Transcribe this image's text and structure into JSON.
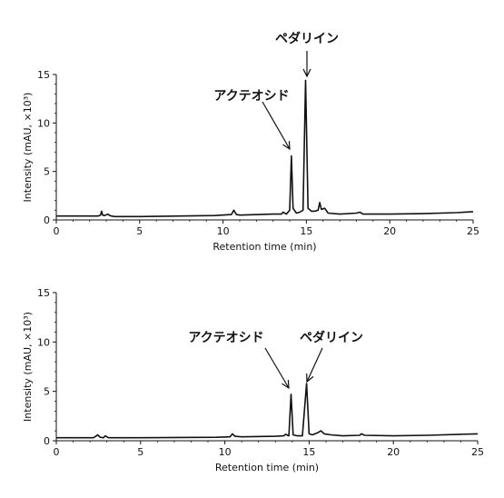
{
  "chart_data": [
    {
      "type": "line",
      "xlabel": "Retention time (min)",
      "ylabel": "Intensity (mAU, ×10³)",
      "xlim": [
        0,
        25
      ],
      "ylim": [
        0,
        15
      ],
      "xticks": [
        0,
        5,
        10,
        15,
        20,
        25
      ],
      "yticks": [
        0,
        5,
        10,
        15
      ],
      "grid": false,
      "series": [
        {
          "x": [
            0,
            2.5,
            2.65,
            2.72,
            2.78,
            2.9,
            3.1,
            3.2,
            3.3,
            3.5,
            5,
            9.5,
            10.5,
            10.65,
            10.8,
            11,
            13,
            13.5,
            13.6,
            13.8,
            14.0,
            14.1,
            14.2,
            14.4,
            14.6,
            14.8,
            14.95,
            15.1,
            15.3,
            15.5,
            15.7,
            15.8,
            15.9,
            16.1,
            16.3,
            17,
            18,
            18.2,
            18.4,
            19,
            20,
            22,
            24,
            25
          ],
          "y": [
            0.4,
            0.4,
            0.5,
            0.9,
            0.5,
            0.45,
            0.6,
            0.45,
            0.4,
            0.35,
            0.35,
            0.45,
            0.55,
            1.0,
            0.55,
            0.5,
            0.6,
            0.6,
            0.8,
            0.6,
            1.0,
            6.6,
            1.2,
            0.7,
            0.8,
            1.0,
            14.4,
            1.2,
            0.9,
            0.9,
            1.0,
            1.8,
            1.1,
            1.2,
            0.7,
            0.6,
            0.7,
            0.8,
            0.6,
            0.6,
            0.6,
            0.65,
            0.75,
            0.85
          ]
        }
      ],
      "annotations": [
        {
          "text": "アクテオシド",
          "x": 14.1,
          "y": 6.6
        },
        {
          "text": "ペダリイン",
          "x": 14.95,
          "y": 14.4
        }
      ]
    },
    {
      "type": "line",
      "xlabel": "Retention time (min)",
      "ylabel": "Intensity (mAU, ×10³)",
      "xlim": [
        0,
        25
      ],
      "ylim": [
        0,
        15
      ],
      "xticks": [
        0,
        5,
        10,
        15,
        20,
        25
      ],
      "yticks": [
        0,
        5,
        10,
        15
      ],
      "grid": false,
      "series": [
        {
          "x": [
            0,
            2.2,
            2.35,
            2.45,
            2.6,
            2.8,
            2.9,
            3.1,
            3.5,
            5,
            9.5,
            10.3,
            10.45,
            10.6,
            11,
            13,
            13.5,
            13.6,
            13.8,
            13.93,
            14.05,
            14.3,
            14.6,
            14.85,
            15.0,
            15.2,
            15.5,
            15.7,
            15.9,
            16.3,
            17,
            18,
            18.1,
            18.3,
            20,
            22,
            24,
            25
          ],
          "y": [
            0.3,
            0.3,
            0.45,
            0.6,
            0.35,
            0.3,
            0.5,
            0.3,
            0.3,
            0.3,
            0.35,
            0.4,
            0.7,
            0.45,
            0.4,
            0.45,
            0.5,
            0.65,
            0.5,
            4.7,
            0.6,
            0.5,
            0.5,
            5.8,
            0.7,
            0.6,
            0.8,
            1.0,
            0.7,
            0.6,
            0.5,
            0.55,
            0.7,
            0.55,
            0.5,
            0.55,
            0.65,
            0.7
          ]
        }
      ],
      "annotations": [
        {
          "text": "アクテオシド",
          "x": 13.93,
          "y": 4.7
        },
        {
          "text": "ペダリイン",
          "x": 14.85,
          "y": 5.8
        }
      ]
    }
  ]
}
